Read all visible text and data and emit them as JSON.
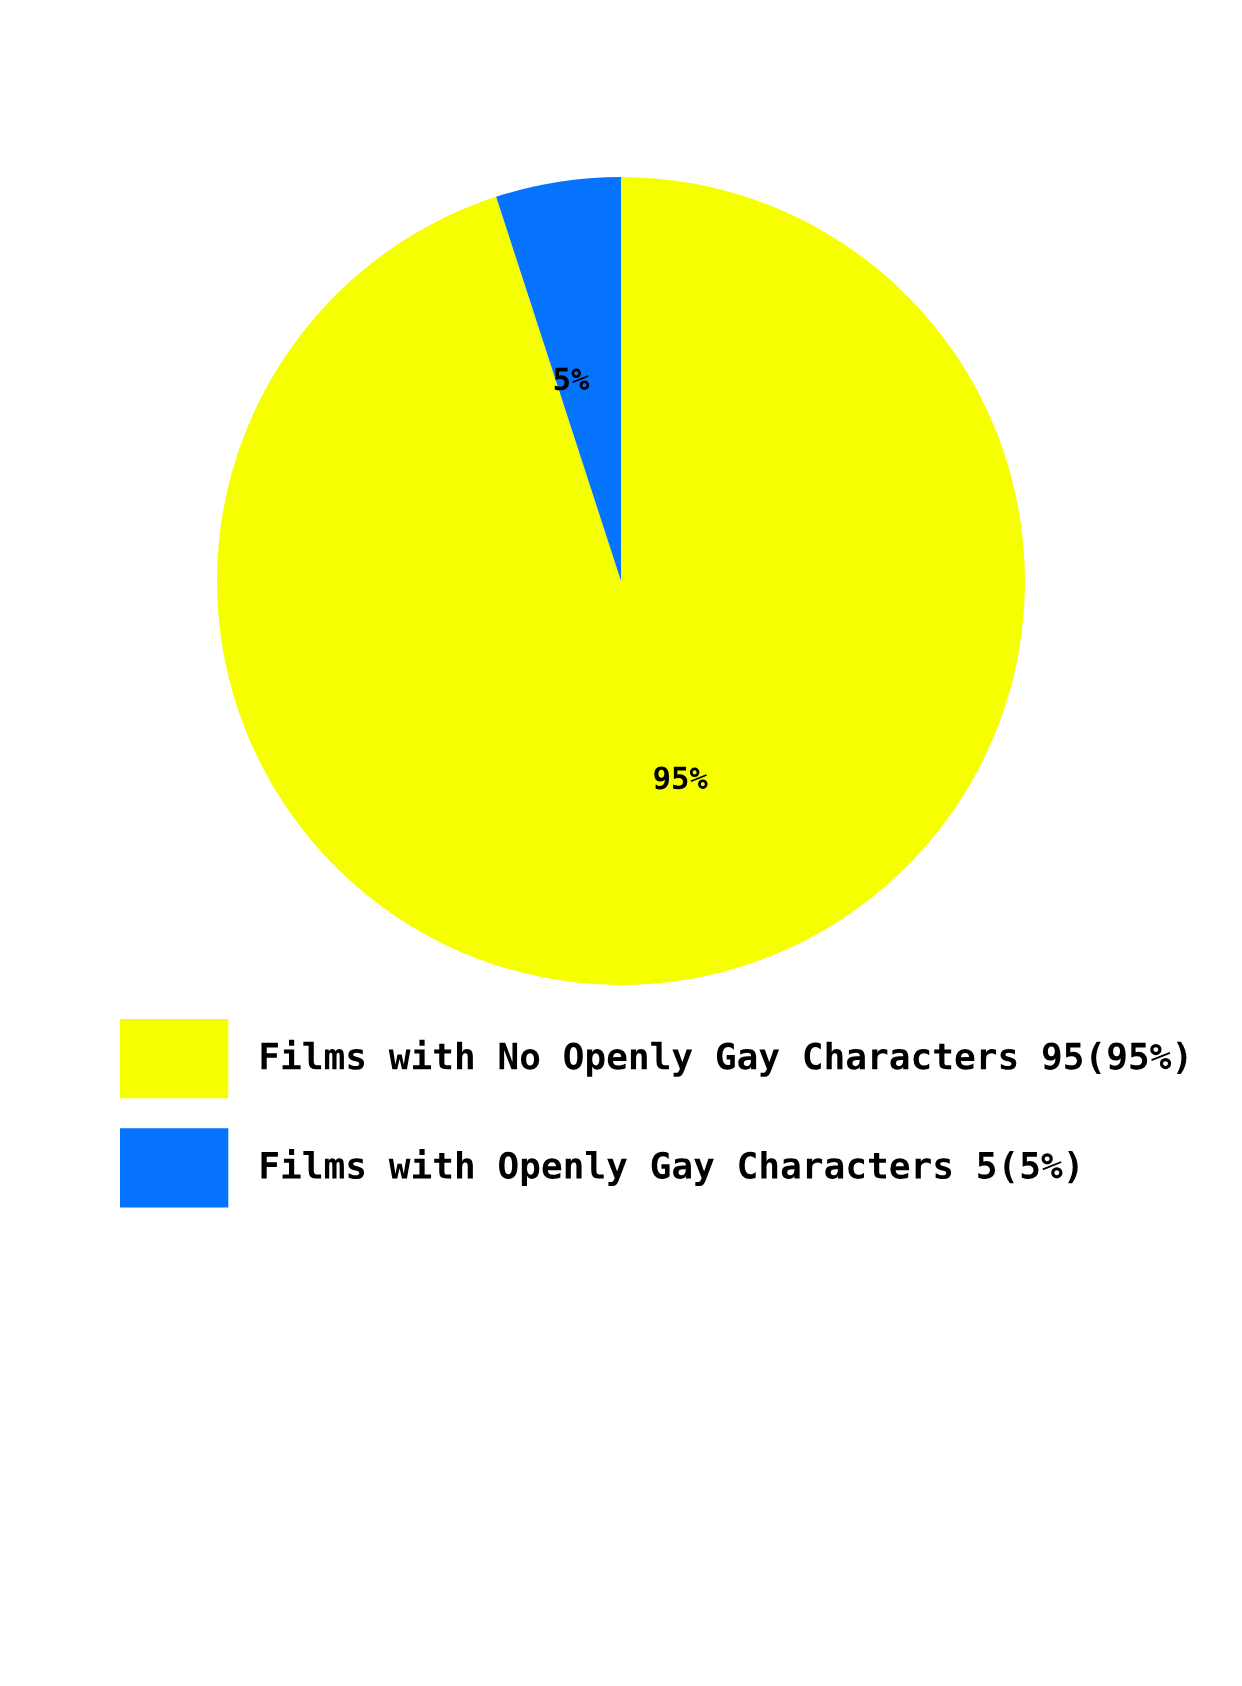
{
  "chart_data": {
    "type": "pie",
    "categories": [
      "Films with No Openly Gay Characters 95(95%)",
      "Films with Openly Gay Characters 5(5%)"
    ],
    "values": [
      95,
      5
    ],
    "colors": [
      "#f5ff00",
      "#0673ff"
    ],
    "value_labels": [
      "95%",
      "5%"
    ],
    "legend": "bottom"
  }
}
